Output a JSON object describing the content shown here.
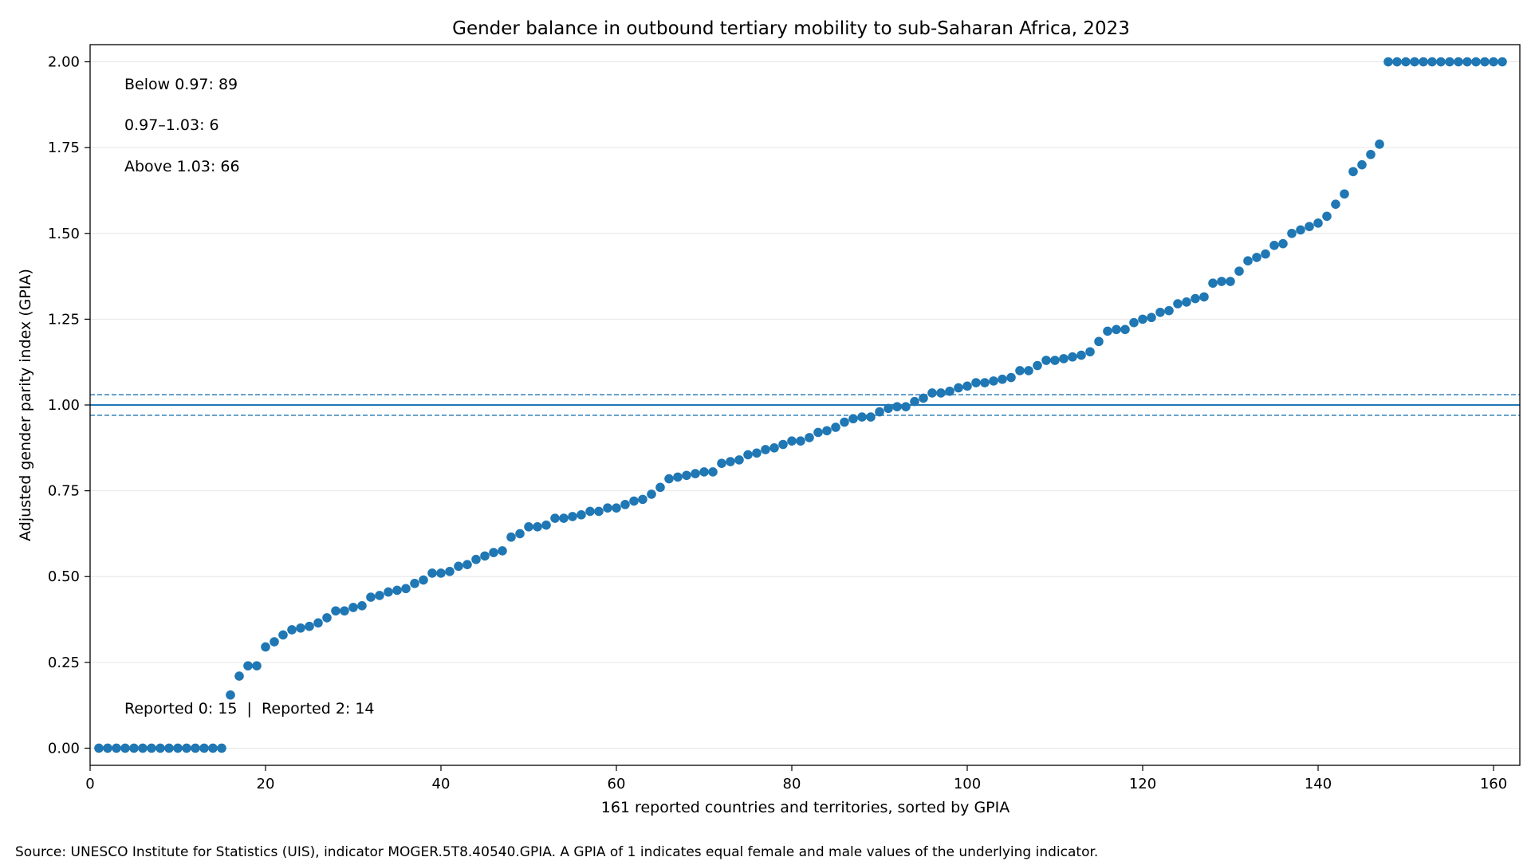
{
  "chart_data": {
    "type": "scatter",
    "title": "Gender balance in outbound tertiary mobility to sub-Saharan Africa, 2023",
    "xlabel": "161 reported countries and territories, sorted by GPIA",
    "ylabel": "Adjusted gender parity index (GPIA)",
    "xlim": [
      0,
      163
    ],
    "ylim": [
      -0.05,
      2.05
    ],
    "x_ticks": [
      0,
      20,
      40,
      60,
      80,
      100,
      120,
      140,
      160
    ],
    "x_tick_labels": [
      "0",
      "20",
      "40",
      "60",
      "80",
      "100",
      "120",
      "140",
      "160"
    ],
    "y_ticks": [
      0,
      0.25,
      0.5,
      0.75,
      1.0,
      1.25,
      1.5,
      1.75,
      2.0
    ],
    "y_tick_labels": [
      "0.00",
      "0.25",
      "0.50",
      "0.75",
      "1.00",
      "1.25",
      "1.50",
      "1.75",
      "2.00"
    ],
    "grid": "horizontal",
    "marker_color": "#1f77b4",
    "reference_lines": [
      {
        "y": 1.0,
        "style": "solid",
        "color": "#1f77b4"
      },
      {
        "y": 1.03,
        "style": "dashed",
        "color": "#1f77b4"
      },
      {
        "y": 0.97,
        "style": "dashed",
        "color": "#1f77b4"
      }
    ],
    "annotations": [
      "Below 0.97: 89",
      "0.97–1.03: 6",
      "Above 1.03: 66",
      "Reported 0: 15  |  Reported 2: 14"
    ],
    "x": [
      1,
      2,
      3,
      4,
      5,
      6,
      7,
      8,
      9,
      10,
      11,
      12,
      13,
      14,
      15,
      16,
      17,
      18,
      19,
      20,
      21,
      22,
      23,
      24,
      25,
      26,
      27,
      28,
      29,
      30,
      31,
      32,
      33,
      34,
      35,
      36,
      37,
      38,
      39,
      40,
      41,
      42,
      43,
      44,
      45,
      46,
      47,
      48,
      49,
      50,
      51,
      52,
      53,
      54,
      55,
      56,
      57,
      58,
      59,
      60,
      61,
      62,
      63,
      64,
      65,
      66,
      67,
      68,
      69,
      70,
      71,
      72,
      73,
      74,
      75,
      76,
      77,
      78,
      79,
      80,
      81,
      82,
      83,
      84,
      85,
      86,
      87,
      88,
      89,
      90,
      91,
      92,
      93,
      94,
      95,
      96,
      97,
      98,
      99,
      100,
      101,
      102,
      103,
      104,
      105,
      106,
      107,
      108,
      109,
      110,
      111,
      112,
      113,
      114,
      115,
      116,
      117,
      118,
      119,
      120,
      121,
      122,
      123,
      124,
      125,
      126,
      127,
      128,
      129,
      130,
      131,
      132,
      133,
      134,
      135,
      136,
      137,
      138,
      139,
      140,
      141,
      142,
      143,
      144,
      145,
      146,
      147,
      148,
      149,
      150,
      151,
      152,
      153,
      154,
      155,
      156,
      157,
      158,
      159,
      160,
      161
    ],
    "y": [
      0,
      0,
      0,
      0,
      0,
      0,
      0,
      0,
      0,
      0,
      0,
      0,
      0,
      0,
      0,
      0.155,
      0.21,
      0.24,
      0.24,
      0.295,
      0.31,
      0.33,
      0.345,
      0.35,
      0.355,
      0.365,
      0.38,
      0.4,
      0.4,
      0.41,
      0.415,
      0.44,
      0.445,
      0.455,
      0.46,
      0.465,
      0.48,
      0.49,
      0.51,
      0.51,
      0.515,
      0.53,
      0.535,
      0.55,
      0.56,
      0.57,
      0.575,
      0.615,
      0.625,
      0.645,
      0.645,
      0.65,
      0.67,
      0.67,
      0.675,
      0.68,
      0.69,
      0.69,
      0.7,
      0.7,
      0.71,
      0.72,
      0.725,
      0.74,
      0.76,
      0.785,
      0.79,
      0.795,
      0.8,
      0.805,
      0.805,
      0.83,
      0.835,
      0.84,
      0.855,
      0.86,
      0.87,
      0.875,
      0.885,
      0.895,
      0.895,
      0.905,
      0.92,
      0.925,
      0.935,
      0.95,
      0.96,
      0.965,
      0.965,
      0.98,
      0.99,
      0.995,
      0.995,
      1.01,
      1.02,
      1.035,
      1.035,
      1.04,
      1.05,
      1.055,
      1.065,
      1.065,
      1.07,
      1.075,
      1.08,
      1.1,
      1.1,
      1.115,
      1.13,
      1.13,
      1.135,
      1.14,
      1.145,
      1.155,
      1.185,
      1.215,
      1.22,
      1.22,
      1.24,
      1.25,
      1.255,
      1.27,
      1.275,
      1.295,
      1.3,
      1.31,
      1.315,
      1.355,
      1.36,
      1.36,
      1.39,
      1.42,
      1.43,
      1.44,
      1.465,
      1.47,
      1.5,
      1.51,
      1.52,
      1.53,
      1.55,
      1.585,
      1.615,
      1.68,
      1.7,
      1.73,
      1.76,
      2,
      2,
      2,
      2,
      2,
      2,
      2,
      2,
      2,
      2,
      2,
      2,
      2,
      2
    ]
  },
  "source_note": "Source: UNESCO Institute for Statistics (UIS), indicator MOGER.5T8.40540.GPIA. A GPIA of 1 indicates equal female and male values of the underlying indicator."
}
